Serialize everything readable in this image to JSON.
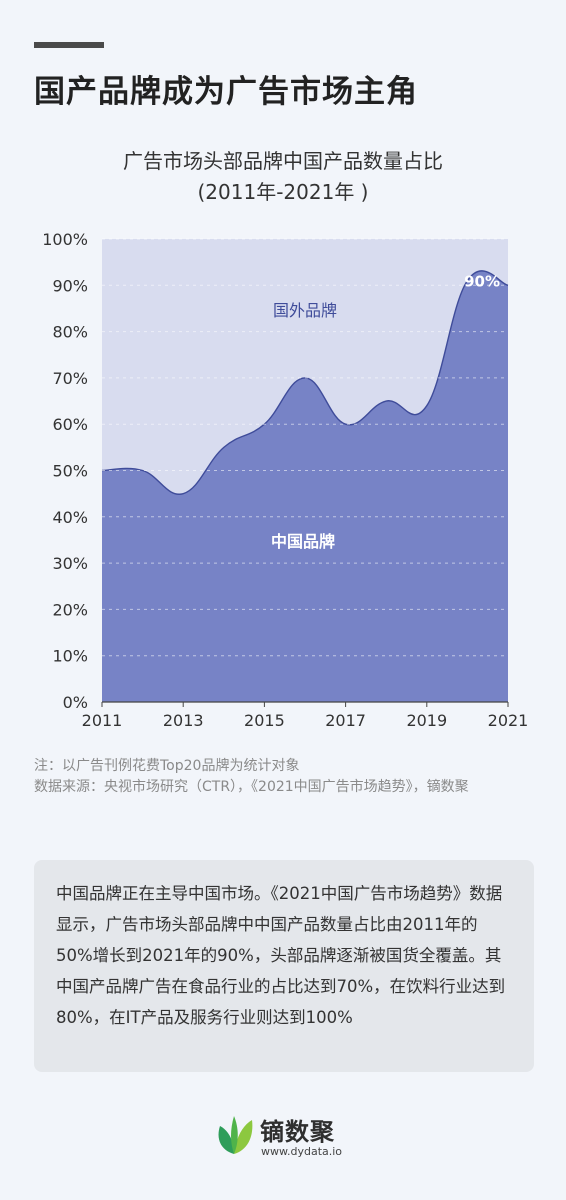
{
  "page": {
    "title": "国产品牌成为广告市场主角"
  },
  "chart_data": {
    "type": "area",
    "title": "广告市场头部品牌中国产品数量占比",
    "subtitle": "(2011年-2021年 )",
    "xlabel": "",
    "ylabel": "",
    "xlim": [
      2011,
      2021
    ],
    "ylim": [
      0,
      100
    ],
    "x_ticks": [
      "2011",
      "2013",
      "2015",
      "2017",
      "2019",
      "2021"
    ],
    "y_ticks": [
      "0%",
      "10%",
      "20%",
      "30%",
      "40%",
      "50%",
      "60%",
      "70%",
      "80%",
      "90%",
      "100%"
    ],
    "grid": true,
    "stacked_to": 100,
    "series": [
      {
        "name": "中国品牌",
        "color": "#7783c6",
        "x": [
          2011,
          2012,
          2013,
          2014,
          2015,
          2016,
          2017,
          2018,
          2019,
          2020,
          2021
        ],
        "values": [
          50,
          50,
          45,
          55,
          60,
          70,
          60,
          65,
          64,
          91,
          90
        ]
      },
      {
        "name": "国外品牌",
        "color": "#d8dcef"
      }
    ],
    "annotations": [
      {
        "text": "90%",
        "x": 2021,
        "y": 90
      }
    ]
  },
  "notes": {
    "line1": "注：以广告刊例花费Top20品牌为统计对象",
    "line2": "数据来源：央视市场研究（CTR），《2021中国广告市场趋势》，镝数聚"
  },
  "summary": {
    "text": "中国品牌正在主导中国市场。《2021中国广告市场趋势》数据显示，广告市场头部品牌中中国产品数量占比由2011年的50%增长到2021年的90%，头部品牌逐渐被国货全覆盖。其中国产品牌广告在食品行业的占比达到70%，在饮料行业达到80%，在IT产品及服务行业则达到100%"
  },
  "logo": {
    "name": "镝数聚",
    "url": "www.dydata.io",
    "icon": "leaf-logo-icon",
    "colors": [
      "#2e9d5a",
      "#8cc83f"
    ]
  }
}
